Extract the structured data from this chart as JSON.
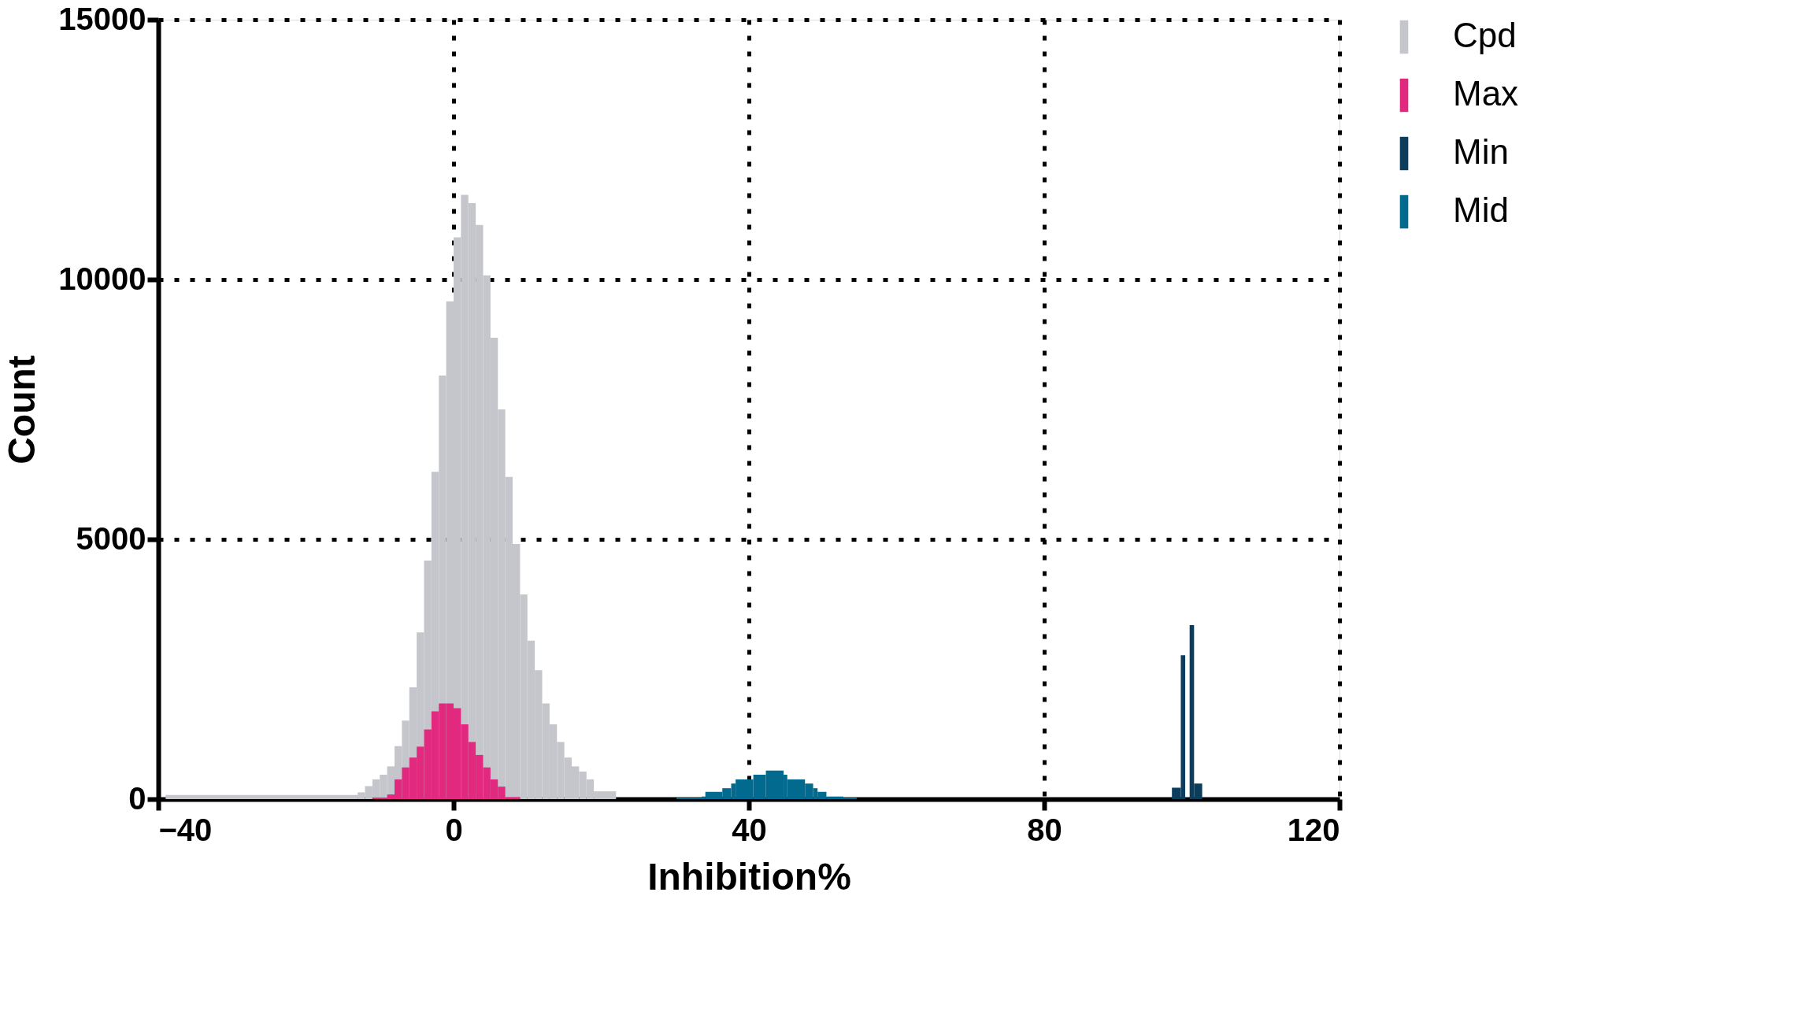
{
  "chart_data": {
    "type": "histogram",
    "xlabel": "Inhibition%",
    "ylabel": "Count",
    "xlim": [
      -40,
      120
    ],
    "xticks": [
      -40,
      0,
      40,
      80,
      120
    ],
    "ylim": [
      0,
      15000
    ],
    "yticks": [
      0,
      5000,
      10000,
      15000
    ],
    "grid": true,
    "legend": "top right",
    "bins": [
      -39,
      -13,
      -12,
      -11,
      -10,
      -9,
      -8,
      -7,
      -6,
      -5,
      -4,
      -3,
      -2,
      -1,
      0,
      1,
      2,
      3,
      4,
      5,
      6,
      7,
      8,
      9,
      10,
      11,
      12,
      13,
      14,
      15,
      16,
      17,
      18,
      19,
      22,
      30.2,
      33.6,
      34.1,
      36.4,
      37.6,
      38.2,
      40.6,
      42.3,
      44.7,
      45.2,
      47.6,
      48.7,
      49.3,
      50.5,
      52.8,
      54.6,
      97.3,
      98.5,
      99.1,
      99.7,
      100.3,
      101.4
    ],
    "series": [
      {
        "name": "Cpd",
        "color": "#c5c5cc",
        "values": [
          80,
          130,
          250,
          380,
          470,
          630,
          1020,
          1510,
          2150,
          3210,
          4590,
          6300,
          8150,
          9580,
          10810,
          11630,
          11470,
          11050,
          10080,
          8880,
          7500,
          6200,
          4910,
          3940,
          3050,
          2480,
          1840,
          1440,
          1100,
          800,
          630,
          530,
          380,
          150,
          null,
          null,
          null,
          null,
          null,
          null,
          null,
          null,
          null,
          null,
          null,
          null,
          null,
          null,
          null,
          null,
          null,
          null,
          null,
          null,
          null,
          null
        ]
      },
      {
        "name": "Max",
        "color": "#e0297f",
        "values": [
          null,
          null,
          null,
          30,
          30,
          90,
          380,
          610,
          800,
          1010,
          1340,
          1690,
          1840,
          1840,
          1750,
          1440,
          1100,
          850,
          610,
          380,
          240,
          40,
          40,
          null,
          null,
          null,
          null,
          null,
          null,
          null,
          null,
          null,
          null,
          null,
          null,
          null,
          null,
          null,
          null,
          null,
          null,
          null,
          null,
          null,
          null,
          null,
          null,
          null,
          null,
          null,
          null,
          null,
          null,
          null,
          null,
          null
        ]
      },
      {
        "name": "Min",
        "color": "#0c3d5c",
        "values": [
          null,
          null,
          null,
          null,
          null,
          null,
          null,
          null,
          null,
          null,
          null,
          null,
          null,
          null,
          null,
          null,
          null,
          null,
          null,
          null,
          null,
          null,
          null,
          null,
          null,
          null,
          null,
          null,
          null,
          null,
          null,
          null,
          null,
          null,
          null,
          null,
          null,
          null,
          null,
          null,
          null,
          null,
          null,
          null,
          null,
          null,
          null,
          null,
          null,
          null,
          null,
          220,
          2770,
          null,
          3350,
          300
        ]
      },
      {
        "name": "Mid",
        "color": "#036a8f",
        "values": [
          null,
          null,
          null,
          null,
          null,
          null,
          null,
          null,
          null,
          null,
          null,
          null,
          null,
          null,
          null,
          null,
          null,
          null,
          null,
          null,
          null,
          null,
          null,
          null,
          null,
          null,
          null,
          null,
          null,
          null,
          null,
          null,
          null,
          null,
          null,
          30,
          50,
          140,
          210,
          300,
          380,
          470,
          550,
          470,
          380,
          300,
          210,
          140,
          50,
          30,
          null,
          null,
          null,
          null,
          null,
          null
        ]
      }
    ]
  }
}
